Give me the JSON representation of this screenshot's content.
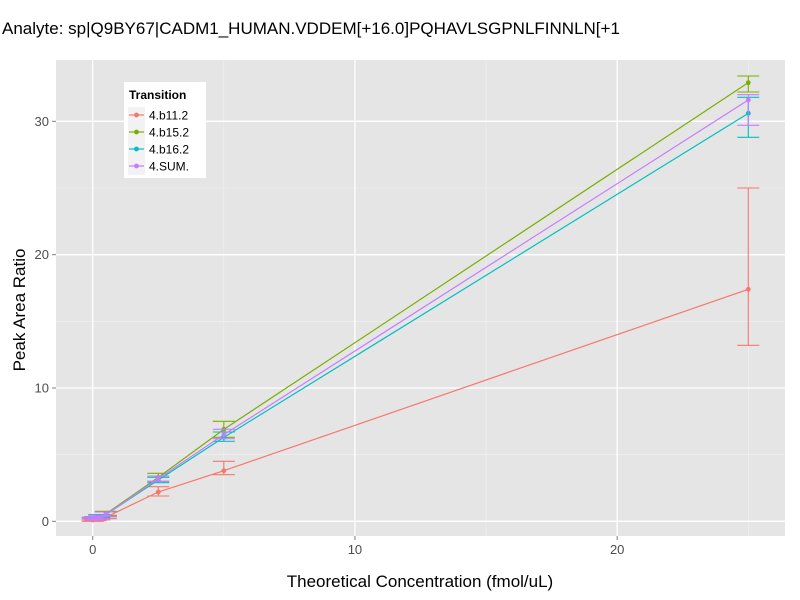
{
  "chart_data": {
    "type": "line",
    "title": "Analyte: sp|Q9BY67|CADM1_HUMAN.VDDEM[+16.0]PQHAVLSGPNLFINNLN[+1",
    "xlabel": "Theoretical Concentration (fmol/uL)",
    "ylabel": "Peak Area Ratio",
    "xlim": [
      -1.4,
      26.4
    ],
    "ylim": [
      -1.1,
      34.6
    ],
    "xticks": [
      0,
      10,
      20
    ],
    "yticks": [
      0,
      10,
      20,
      30
    ],
    "grid": true,
    "legend": {
      "title": "Transition",
      "position": "top-left-inside"
    },
    "series": [
      {
        "name": "4.b11.2",
        "color": "#F8766D",
        "points": [
          {
            "x": 0,
            "y": 0.1,
            "ylo": 0.0,
            "yhi": 0.2
          },
          {
            "x": 0.1,
            "y": 0.15,
            "ylo": 0.05,
            "yhi": 0.25
          },
          {
            "x": 0.25,
            "y": 0.2,
            "ylo": 0.1,
            "yhi": 0.3
          },
          {
            "x": 0.5,
            "y": 0.3,
            "ylo": 0.2,
            "yhi": 0.45
          },
          {
            "x": 2.5,
            "y": 2.2,
            "ylo": 1.9,
            "yhi": 2.6
          },
          {
            "x": 5,
            "y": 3.8,
            "ylo": 3.5,
            "yhi": 4.5
          },
          {
            "x": 25,
            "y": 17.4,
            "ylo": 13.2,
            "yhi": 25.0
          }
        ]
      },
      {
        "name": "4.b15.2",
        "color": "#7CAE00",
        "points": [
          {
            "x": 0,
            "y": 0.2,
            "ylo": 0.1,
            "yhi": 0.3
          },
          {
            "x": 0.1,
            "y": 0.25,
            "ylo": 0.15,
            "yhi": 0.35
          },
          {
            "x": 0.25,
            "y": 0.35,
            "ylo": 0.25,
            "yhi": 0.5
          },
          {
            "x": 0.5,
            "y": 0.55,
            "ylo": 0.4,
            "yhi": 0.75
          },
          {
            "x": 2.5,
            "y": 3.3,
            "ylo": 3.0,
            "yhi": 3.6
          },
          {
            "x": 5,
            "y": 6.9,
            "ylo": 6.3,
            "yhi": 7.5
          },
          {
            "x": 25,
            "y": 32.9,
            "ylo": 32.2,
            "yhi": 33.4
          }
        ]
      },
      {
        "name": "4.b16.2",
        "color": "#00BFC4",
        "points": [
          {
            "x": 0,
            "y": 0.2,
            "ylo": 0.1,
            "yhi": 0.3
          },
          {
            "x": 0.1,
            "y": 0.25,
            "ylo": 0.15,
            "yhi": 0.35
          },
          {
            "x": 0.25,
            "y": 0.35,
            "ylo": 0.25,
            "yhi": 0.5
          },
          {
            "x": 0.5,
            "y": 0.5,
            "ylo": 0.35,
            "yhi": 0.7
          },
          {
            "x": 2.5,
            "y": 3.1,
            "ylo": 2.9,
            "yhi": 3.3
          },
          {
            "x": 5,
            "y": 6.3,
            "ylo": 6.0,
            "yhi": 6.7
          },
          {
            "x": 25,
            "y": 30.6,
            "ylo": 28.8,
            "yhi": 31.8
          }
        ]
      },
      {
        "name": "4.SUM.",
        "color": "#C77CFF",
        "points": [
          {
            "x": 0,
            "y": 0.2,
            "ylo": 0.1,
            "yhi": 0.3
          },
          {
            "x": 0.1,
            "y": 0.25,
            "ylo": 0.15,
            "yhi": 0.35
          },
          {
            "x": 0.25,
            "y": 0.3,
            "ylo": 0.2,
            "yhi": 0.45
          },
          {
            "x": 0.5,
            "y": 0.5,
            "ylo": 0.35,
            "yhi": 0.7
          },
          {
            "x": 2.5,
            "y": 3.2,
            "ylo": 3.0,
            "yhi": 3.4
          },
          {
            "x": 5,
            "y": 6.5,
            "ylo": 6.2,
            "yhi": 6.9
          },
          {
            "x": 25,
            "y": 31.6,
            "ylo": 29.7,
            "yhi": 32.0
          }
        ]
      }
    ]
  }
}
